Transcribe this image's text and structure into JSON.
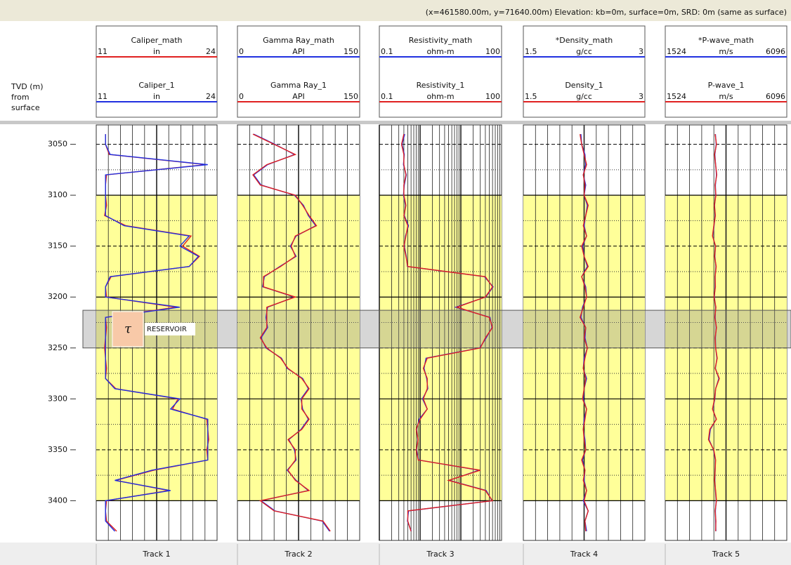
{
  "status_bar": "(x=461580.00m, y=71640.00m) Elevation: kb=0m, surface=0m, SRD: 0m (same as surface)",
  "depth_axis": {
    "label": [
      "TVD (m)",
      "from",
      "surface"
    ],
    "ylim": [
      3031,
      3439
    ],
    "yticks": [
      3050,
      3100,
      3150,
      3200,
      3250,
      3300,
      3350,
      3400
    ]
  },
  "depth": [
    3040,
    3050,
    3060,
    3070,
    3080,
    3090,
    3100,
    3110,
    3120,
    3130,
    3140,
    3150,
    3160,
    3170,
    3180,
    3190,
    3200,
    3210,
    3220,
    3230,
    3240,
    3250,
    3260,
    3270,
    3280,
    3290,
    3300,
    3310,
    3320,
    3330,
    3340,
    3350,
    3360,
    3370,
    3380,
    3390,
    3400,
    3410,
    3420,
    3430
  ],
  "zone": {
    "top": 3100,
    "bottom": 3400,
    "color": "#ffff99"
  },
  "reservoir": {
    "symbol": "τ",
    "name": "RESERVOIR",
    "top": 3213,
    "bottom": 3250,
    "color": "#8a8a8a"
  },
  "chart_data": [
    {
      "type": "line",
      "name": "Track 1",
      "scale": "linear",
      "xlim": [
        11,
        24
      ],
      "series": [
        {
          "name": "Caliper_math",
          "unit": "in",
          "color": "#e02020",
          "values": [
            12,
            12,
            12.4,
            22.8,
            12.1,
            12,
            12,
            12.1,
            11.9,
            14.2,
            21.2,
            20.3,
            22.1,
            21,
            12.6,
            12,
            12.1,
            19.6,
            12,
            12.1,
            12,
            11.9,
            12,
            12.1,
            12,
            13.1,
            19.8,
            19.2,
            22.9,
            23,
            23.1,
            22.9,
            23,
            17.2,
            13.1,
            18.8,
            12.1,
            12,
            12.1,
            13.2
          ]
        },
        {
          "name": "Caliper_1",
          "unit": "in",
          "color": "#2030e0",
          "values": [
            12,
            12,
            12.5,
            23,
            12,
            12,
            12,
            12,
            12,
            14,
            21,
            20,
            22,
            21,
            12.5,
            12,
            12,
            20,
            12,
            12,
            12,
            12,
            12,
            12,
            12,
            13,
            20,
            19,
            23,
            23,
            23,
            23,
            23,
            17,
            13,
            19,
            12,
            12,
            12,
            13
          ]
        }
      ]
    },
    {
      "type": "line",
      "name": "Track 2",
      "scale": "linear",
      "xlim": [
        0,
        150
      ],
      "series": [
        {
          "name": "Gamma Ray_math",
          "unit": "API",
          "color": "#2030e0",
          "values": [
            20,
            46,
            70,
            37,
            20,
            29,
            70,
            81,
            87,
            96,
            72,
            65,
            72,
            52,
            33,
            31,
            70,
            37,
            35,
            37,
            29,
            35,
            54,
            61,
            80,
            87,
            78,
            80,
            87,
            78,
            63,
            70,
            72,
            61,
            72,
            87,
            29,
            46,
            104,
            113
          ]
        },
        {
          "name": "Gamma Ray_1",
          "unit": "API",
          "color": "#e02020",
          "values": [
            19,
            45,
            71,
            36,
            19,
            28,
            71,
            80,
            88,
            97,
            71,
            66,
            71,
            53,
            32,
            32,
            71,
            36,
            36,
            36,
            28,
            36,
            53,
            62,
            79,
            88,
            79,
            79,
            88,
            79,
            62,
            71,
            71,
            62,
            71,
            88,
            28,
            45,
            105,
            114
          ]
        }
      ]
    },
    {
      "type": "line",
      "name": "Track 3",
      "scale": "log",
      "xlim": [
        0.1,
        100
      ],
      "series": [
        {
          "name": "Resistivity_math",
          "unit": "ohm-m",
          "color": "#2030e0",
          "values": [
            0.42,
            0.36,
            0.41,
            0.39,
            0.46,
            0.41,
            0.39,
            0.44,
            0.41,
            0.52,
            0.44,
            0.41,
            0.46,
            0.49,
            38,
            62,
            41,
            7.5,
            52,
            58,
            42,
            29,
            1.4,
            1.25,
            1.45,
            1.55,
            1.15,
            1.5,
            0.95,
            0.82,
            0.88,
            0.82,
            0.92,
            28,
            5.2,
            42,
            58,
            0.52,
            0.49,
            0.61
          ]
        },
        {
          "name": "Resistivity_1",
          "unit": "ohm-m",
          "color": "#e02020",
          "values": [
            0.4,
            0.35,
            0.4,
            0.4,
            0.45,
            0.4,
            0.4,
            0.45,
            0.4,
            0.5,
            0.45,
            0.4,
            0.45,
            0.5,
            40,
            60,
            40,
            8,
            50,
            60,
            40,
            30,
            1.5,
            1.2,
            1.5,
            1.5,
            1.2,
            1.5,
            1,
            0.8,
            0.9,
            0.8,
            0.9,
            30,
            5,
            40,
            60,
            0.5,
            0.5,
            0.6
          ]
        }
      ]
    },
    {
      "type": "line",
      "name": "Track 4",
      "scale": "linear",
      "xlim": [
        1.5,
        3
      ],
      "series": [
        {
          "name": "*Density_math",
          "unit": "g/cc",
          "color": "#2030e0",
          "values": [
            2.21,
            2.22,
            2.26,
            2.27,
            2.24,
            2.27,
            2.25,
            2.29,
            2.27,
            2.25,
            2.28,
            2.23,
            2.25,
            2.29,
            2.22,
            2.27,
            2.28,
            2.23,
            2.21,
            2.27,
            2.26,
            2.29,
            2.25,
            2.24,
            2.28,
            2.25,
            2.24,
            2.28,
            2.25,
            2.24,
            2.26,
            2.27,
            2.23,
            2.26,
            2.25,
            2.28,
            2.24,
            2.3,
            2.26,
            2.28
          ]
        },
        {
          "name": "Density_1",
          "unit": "g/cc",
          "color": "#e02020",
          "values": [
            2.2,
            2.22,
            2.25,
            2.28,
            2.24,
            2.26,
            2.25,
            2.3,
            2.27,
            2.24,
            2.28,
            2.22,
            2.25,
            2.3,
            2.22,
            2.26,
            2.28,
            2.24,
            2.2,
            2.27,
            2.25,
            2.29,
            2.26,
            2.24,
            2.27,
            2.25,
            2.23,
            2.28,
            2.26,
            2.24,
            2.25,
            2.27,
            2.22,
            2.26,
            2.24,
            2.28,
            2.25,
            2.3,
            2.26,
            2.27
          ]
        }
      ]
    },
    {
      "type": "line",
      "name": "Track 5",
      "scale": "linear",
      "xlim": [
        1524,
        6096
      ],
      "series": [
        {
          "name": "*P-wave_math",
          "unit": "m/s",
          "color": "#2030e0",
          "values": [
            3410,
            3440,
            3390,
            3420,
            3450,
            3410,
            3420,
            3380,
            3400,
            3360,
            3310,
            3410,
            3390,
            3430,
            3400,
            3400,
            3370,
            3420,
            3400,
            3440,
            3410,
            3420,
            3470,
            3410,
            3540,
            3420,
            3390,
            3310,
            3440,
            3220,
            3170,
            3340,
            3410,
            3400,
            3390,
            3410,
            3440,
            3410,
            3420,
            3430
          ]
        },
        {
          "name": "P-wave_1",
          "unit": "m/s",
          "color": "#e02020",
          "values": [
            3400,
            3450,
            3380,
            3420,
            3460,
            3400,
            3430,
            3370,
            3410,
            3350,
            3300,
            3420,
            3380,
            3440,
            3400,
            3410,
            3360,
            3430,
            3390,
            3450,
            3400,
            3420,
            3480,
            3400,
            3560,
            3420,
            3380,
            3300,
            3450,
            3200,
            3150,
            3350,
            3420,
            3400,
            3380,
            3420,
            3450,
            3400,
            3430,
            3420
          ]
        }
      ]
    }
  ]
}
